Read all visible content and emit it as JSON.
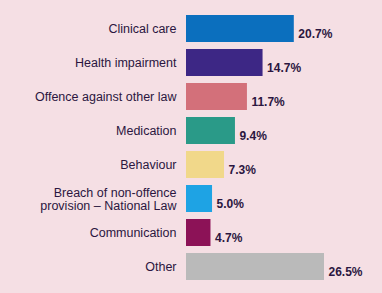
{
  "chart_data": {
    "type": "bar",
    "orientation": "horizontal",
    "categories": [
      "Clinical care",
      "Health impairment",
      "Offence against other law",
      "Medication",
      "Behaviour",
      "Breach of non-offence provision – National Law",
      "Communication",
      "Other"
    ],
    "values": [
      20.7,
      14.7,
      11.7,
      9.4,
      7.3,
      5.0,
      4.7,
      26.5
    ],
    "value_labels": [
      "20.7%",
      "14.7%",
      "11.7%",
      "9.4%",
      "7.3%",
      "5.0%",
      "4.7%",
      "26.5%"
    ],
    "colors": [
      "#0b6fbe",
      "#3d2785",
      "#d3707a",
      "#2a9a88",
      "#f1d88a",
      "#1ea3e4",
      "#8c1257",
      "#bababa"
    ],
    "xlim": [
      0,
      26.5
    ],
    "data_labels": true,
    "tick_labels": false,
    "grid": false
  }
}
